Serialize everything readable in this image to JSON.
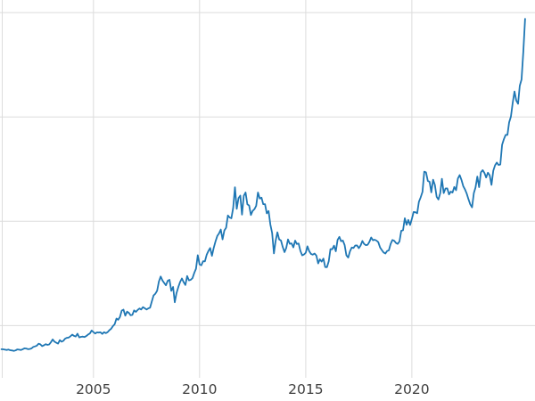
{
  "chart_data": {
    "type": "line",
    "title": "",
    "xlabel": "",
    "ylabel": "",
    "legend": "none",
    "grid": true,
    "grid_color": "#dcdcdc",
    "background": "#ffffff",
    "line_color": "#1f77b4",
    "line_width": 1.8,
    "tick_label_color": "#3f3f3f",
    "xlim": [
      2000.6,
      2025.8
    ],
    "ylim": [
      0,
      3620
    ],
    "x_ticks": [
      {
        "value": 2005,
        "label": "2005"
      },
      {
        "value": 2010,
        "label": "2010"
      },
      {
        "value": 2015,
        "label": "2015"
      },
      {
        "value": 2020,
        "label": "2020"
      }
    ],
    "y_gridline_values": [
      500,
      1500,
      2500,
      3500
    ],
    "series": {
      "x_start": 2000.667,
      "x_step_years": 0.0833333,
      "values": [
        274,
        273,
        270,
        266,
        271,
        265,
        262,
        258,
        263,
        272,
        270,
        266,
        274,
        283,
        281,
        275,
        277,
        282,
        296,
        301,
        308,
        327,
        321,
        304,
        312,
        323,
        316,
        320,
        342,
        368,
        347,
        336,
        328,
        361,
        346,
        354,
        375,
        383,
        386,
        398,
        414,
        402,
        396,
        423,
        388,
        393,
        395,
        391,
        400,
        415,
        425,
        453,
        438,
        424,
        435,
        434,
        436,
        421,
        437,
        429,
        437,
        456,
        470,
        495,
        513,
        568,
        556,
        582,
        644,
        653,
        596,
        634,
        623,
        599,
        603,
        646,
        632,
        651,
        664,
        655,
        677,
        667,
        655,
        665,
        672,
        730,
        789,
        806,
        834,
        923,
        971,
        933,
        909,
        886,
        930,
        939,
        833,
        871,
        724,
        814,
        870,
        919,
        952,
        916,
        890,
        975,
        934,
        939,
        955,
        1006,
        1045,
        1175,
        1087,
        1078,
        1118,
        1116,
        1179,
        1215,
        1244,
        1169,
        1246,
        1307,
        1359,
        1383,
        1421,
        1327,
        1411,
        1439,
        1556,
        1536,
        1529,
        1628,
        1826,
        1620,
        1722,
        1746,
        1564,
        1744,
        1776,
        1662,
        1651,
        1560,
        1598,
        1615,
        1648,
        1776,
        1719,
        1726,
        1664,
        1664,
        1576,
        1598,
        1469,
        1387,
        1192,
        1312,
        1394,
        1326,
        1316,
        1253,
        1205,
        1244,
        1326,
        1284,
        1288,
        1250,
        1315,
        1282,
        1287,
        1216,
        1173,
        1182,
        1199,
        1260,
        1213,
        1187,
        1180,
        1191,
        1171,
        1096,
        1135,
        1114,
        1142,
        1061,
        1060,
        1118,
        1234,
        1232,
        1266,
        1212,
        1322,
        1351,
        1309,
        1316,
        1272,
        1173,
        1152,
        1212,
        1248,
        1244,
        1268,
        1269,
        1242,
        1268,
        1311,
        1283,
        1271,
        1275,
        1303,
        1345,
        1318,
        1323,
        1315,
        1300,
        1250,
        1224,
        1201,
        1191,
        1215,
        1222,
        1282,
        1321,
        1313,
        1292,
        1283,
        1306,
        1409,
        1414,
        1529,
        1466,
        1513,
        1464,
        1523,
        1589,
        1586,
        1577,
        1687,
        1730,
        1781,
        1976,
        1968,
        1886,
        1878,
        1777,
        1898,
        1848,
        1734,
        1708,
        1768,
        1907,
        1770,
        1814,
        1815,
        1757,
        1784,
        1775,
        1829,
        1797,
        1909,
        1942,
        1897,
        1837,
        1807,
        1766,
        1711,
        1662,
        1633,
        1769,
        1824,
        1928,
        1827,
        1969,
        1990,
        1963,
        1919,
        1965,
        1940,
        1848,
        1984,
        2036,
        2063,
        2040,
        2044,
        2233,
        2286,
        2327,
        2327,
        2448,
        2503,
        2635,
        2744,
        2657,
        2625,
        2798,
        2858,
        3124,
        3440
      ]
    }
  }
}
